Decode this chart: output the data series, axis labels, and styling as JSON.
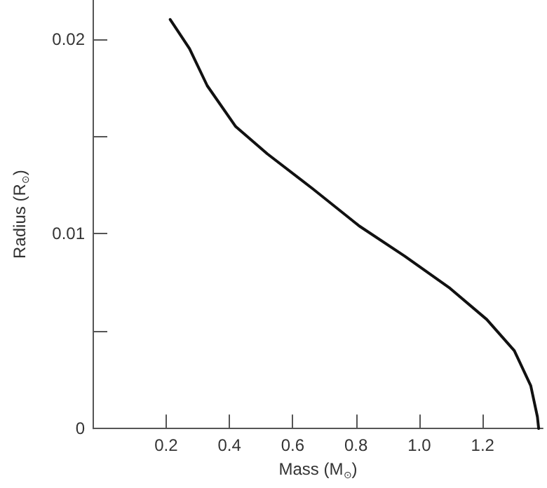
{
  "chart_data": {
    "type": "line",
    "xlabel": "Mass (M$_{⊙}$)",
    "ylabel": "Radius (R$_{⊙}$)",
    "x": [
      0.213,
      0.274,
      0.33,
      0.42,
      0.52,
      0.664,
      0.81,
      0.954,
      1.097,
      1.213,
      1.3,
      1.352,
      1.373,
      1.377
    ],
    "series": [
      {
        "color": "#111111",
        "values": [
          0.021,
          0.0195,
          0.0176,
          0.0155,
          0.0141,
          0.0123,
          0.0104,
          0.00885,
          0.0072,
          0.0056,
          0.004,
          0.0022,
          0.0006,
          0
        ]
      }
    ],
    "xlim": [
      -0.03,
      1.39
    ],
    "ylim": [
      0,
      0.022
    ],
    "xticks": [
      0.2,
      0.4,
      0.6,
      0.8,
      {
        "value": 1.0,
        "label": "1.0"
      },
      1.2
    ],
    "yticks": [
      0,
      {
        "value": 0.005,
        "label": null
      },
      0.01,
      {
        "value": 0.015,
        "label": null
      },
      0.02
    ],
    "grid": false,
    "marker": "none",
    "line_style": "solid"
  }
}
